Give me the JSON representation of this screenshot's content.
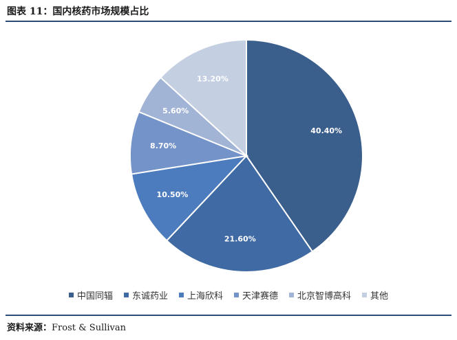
{
  "figure": {
    "title": "图表 11：国内核药市场规模占比",
    "source_label": "资料来源：",
    "source_value": "Frost & Sullivan"
  },
  "chart_data": {
    "type": "pie",
    "categories": [
      "中国同辐",
      "东诚药业",
      "上海欣科",
      "天津赛德",
      "北京智博高科",
      "其他"
    ],
    "values": [
      40.4,
      21.6,
      10.5,
      8.7,
      5.6,
      13.2
    ],
    "labels": [
      "40.40%",
      "21.60%",
      "10.50%",
      "8.70%",
      "5.60%",
      "13.20%"
    ],
    "colors": [
      "#3b5f8c",
      "#3f6aa3",
      "#4d7cbe",
      "#7493c8",
      "#a2b4d6",
      "#c4cfe2"
    ],
    "legend_position": "bottom"
  }
}
